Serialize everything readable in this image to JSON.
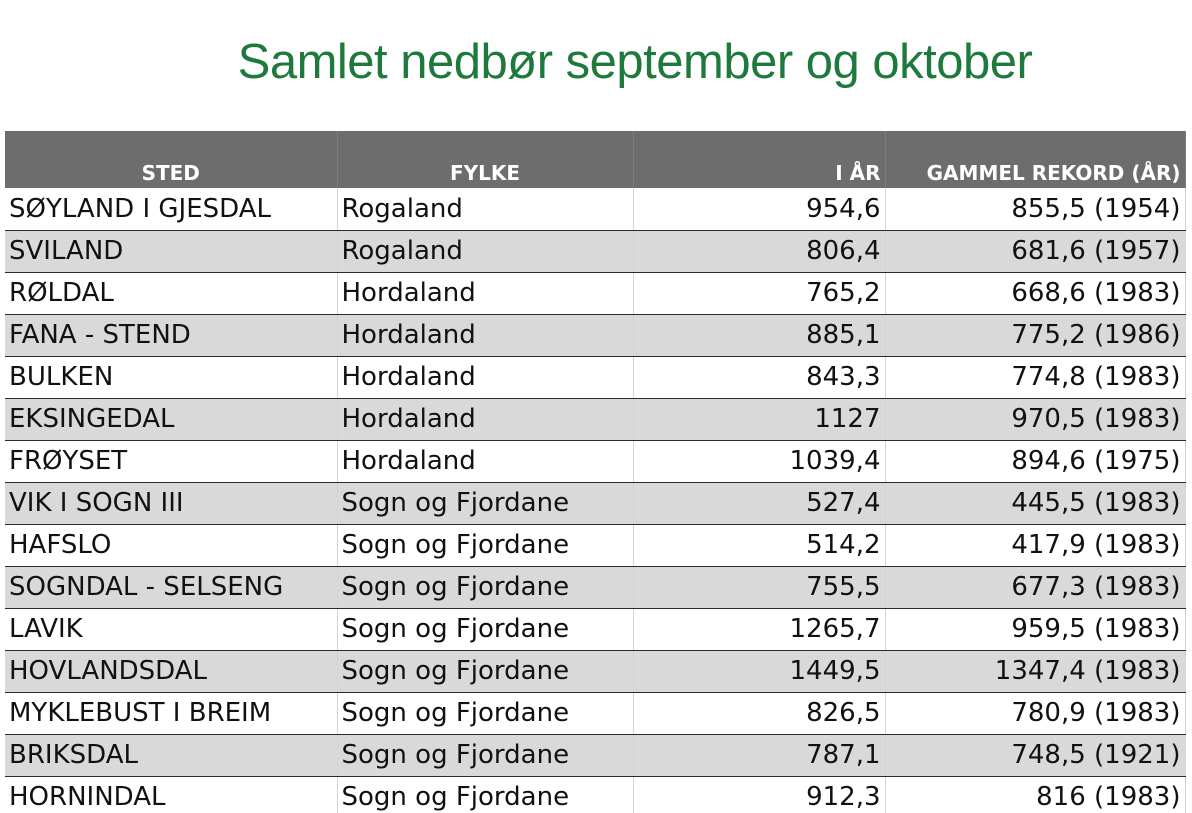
{
  "title": "Samlet nedbør september og oktober",
  "table": {
    "headers": {
      "sted": "STED",
      "fylke": "FYLKE",
      "i_ar": "I ÅR",
      "gammel_rekord": "GAMMEL REKORD (ÅR)"
    },
    "rows": [
      {
        "sted": "SØYLAND I GJESDAL",
        "fylke": "Rogaland",
        "i_ar": "954,6",
        "rekord": "855,5 (1954)"
      },
      {
        "sted": "SVILAND",
        "fylke": "Rogaland",
        "i_ar": "806,4",
        "rekord": "681,6 (1957)"
      },
      {
        "sted": "RØLDAL",
        "fylke": "Hordaland",
        "i_ar": "765,2",
        "rekord": "668,6 (1983)"
      },
      {
        "sted": "FANA - STEND",
        "fylke": "Hordaland",
        "i_ar": "885,1",
        "rekord": "775,2 (1986)"
      },
      {
        "sted": "BULKEN",
        "fylke": "Hordaland",
        "i_ar": "843,3",
        "rekord": "774,8 (1983)"
      },
      {
        "sted": "EKSINGEDAL",
        "fylke": "Hordaland",
        "i_ar": "1127",
        "rekord": "970,5 (1983)"
      },
      {
        "sted": "FRØYSET",
        "fylke": "Hordaland",
        "i_ar": "1039,4",
        "rekord": "894,6 (1975)"
      },
      {
        "sted": "VIK I SOGN III",
        "fylke": "Sogn og Fjordane",
        "i_ar": "527,4",
        "rekord": "445,5 (1983)"
      },
      {
        "sted": "HAFSLO",
        "fylke": "Sogn og Fjordane",
        "i_ar": "514,2",
        "rekord": "417,9 (1983)"
      },
      {
        "sted": "SOGNDAL - SELSENG",
        "fylke": "Sogn og Fjordane",
        "i_ar": "755,5",
        "rekord": "677,3 (1983)"
      },
      {
        "sted": "LAVIK",
        "fylke": "Sogn og Fjordane",
        "i_ar": "1265,7",
        "rekord": "959,5 (1983)"
      },
      {
        "sted": "HOVLANDSDAL",
        "fylke": "Sogn og Fjordane",
        "i_ar": "1449,5",
        "rekord": "1347,4 (1983)"
      },
      {
        "sted": "MYKLEBUST I BREIM",
        "fylke": "Sogn og Fjordane",
        "i_ar": "826,5",
        "rekord": "780,9 (1983)"
      },
      {
        "sted": "BRIKSDAL",
        "fylke": "Sogn og Fjordane",
        "i_ar": "787,1",
        "rekord": "748,5 (1921)"
      },
      {
        "sted": "HORNINDAL",
        "fylke": "Sogn og Fjordane",
        "i_ar": "912,3",
        "rekord": "816 (1983)"
      }
    ]
  },
  "colors": {
    "title": "#1e7a3c",
    "header_bg": "#6d6d6d",
    "stripe_bg": "#d9d9d9"
  }
}
